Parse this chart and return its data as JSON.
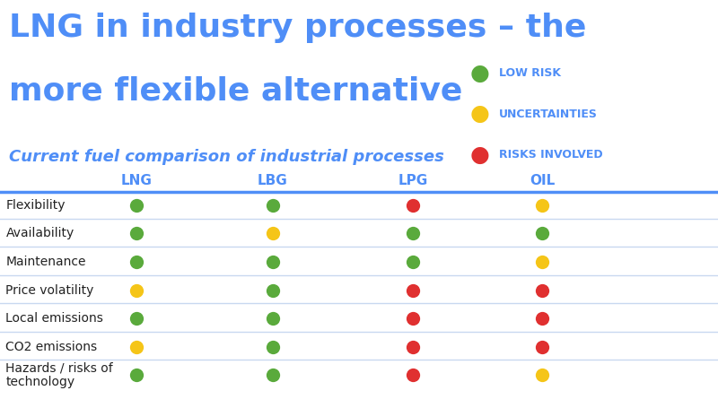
{
  "title_line1": "LNG in industry processes – the",
  "title_line2": "more flexible alternative",
  "subtitle": "Current fuel comparison of industrial processes",
  "title_color": "#4f8ef7",
  "subtitle_color": "#4f8ef7",
  "background_color": "#ffffff",
  "columns": [
    "LNG",
    "LBG",
    "LPG",
    "OIL"
  ],
  "rows": [
    "Flexibility",
    "Availability",
    "Maintenance",
    "Price volatility",
    "Local emissions",
    "CO2 emissions",
    "Hazards / risks of\ntechnology"
  ],
  "colors": {
    "green": "#5aaa3c",
    "yellow": "#f5c518",
    "red": "#e03030"
  },
  "legend": [
    {
      "label": "LOW RISK",
      "color": "#5aaa3c"
    },
    {
      "label": "UNCERTAINTIES",
      "color": "#f5c518"
    },
    {
      "label": "RISKS INVOLVED",
      "color": "#e03030"
    }
  ],
  "data": [
    [
      "green",
      "green",
      "red",
      "yellow"
    ],
    [
      "green",
      "yellow",
      "green",
      "green"
    ],
    [
      "green",
      "green",
      "green",
      "yellow"
    ],
    [
      "yellow",
      "green",
      "red",
      "red"
    ],
    [
      "green",
      "green",
      "red",
      "red"
    ],
    [
      "yellow",
      "green",
      "red",
      "red"
    ],
    [
      "green",
      "green",
      "red",
      "yellow"
    ]
  ],
  "col_header_color": "#4f8ef7",
  "col_header_fontsize": 11,
  "row_label_fontsize": 10,
  "header_line_color": "#4f8ef7",
  "row_line_color": "#c8d8f0",
  "title_fontsize": 26,
  "subtitle_fontsize": 13,
  "legend_fontsize": 9
}
